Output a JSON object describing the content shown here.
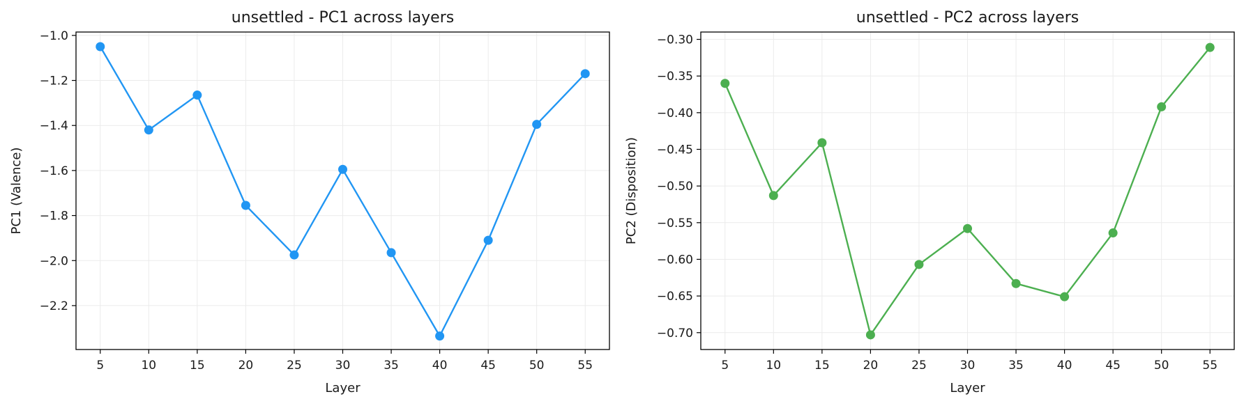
{
  "chart_data": [
    {
      "type": "line",
      "title": "unsettled - PC1 across layers",
      "xlabel": "Layer",
      "ylabel": "PC1 (Valence)",
      "x": [
        5,
        10,
        15,
        20,
        25,
        30,
        35,
        40,
        45,
        50,
        55
      ],
      "xticks": [
        5,
        10,
        15,
        20,
        25,
        30,
        35,
        40,
        45,
        50,
        55
      ],
      "xlim": [
        2.5,
        57.5
      ],
      "yticks": [
        -2.2,
        -2.0,
        -1.8,
        -1.6,
        -1.4,
        -1.2,
        -1.0
      ],
      "ytick_labels": [
        "−2.2",
        "−2.0",
        "−1.8",
        "−1.6",
        "−1.4",
        "−1.2",
        "−1.0"
      ],
      "ylim": [
        -2.395,
        -0.985
      ],
      "grid": true,
      "color": "#2196F3",
      "series": [
        {
          "values": [
            -1.05,
            -1.42,
            -1.265,
            -1.755,
            -1.975,
            -1.595,
            -1.965,
            -2.335,
            -1.91,
            -1.395,
            -1.17
          ]
        }
      ]
    },
    {
      "type": "line",
      "title": "unsettled - PC2 across layers",
      "xlabel": "Layer",
      "ylabel": "PC2 (Disposition)",
      "x": [
        5,
        10,
        15,
        20,
        25,
        30,
        35,
        40,
        45,
        50,
        55
      ],
      "xticks": [
        5,
        10,
        15,
        20,
        25,
        30,
        35,
        40,
        45,
        50,
        55
      ],
      "xlim": [
        2.5,
        57.5
      ],
      "yticks": [
        -0.7,
        -0.65,
        -0.6,
        -0.55,
        -0.5,
        -0.45,
        -0.4,
        -0.35,
        -0.3
      ],
      "ytick_labels": [
        "−0.70",
        "−0.65",
        "−0.60",
        "−0.55",
        "−0.50",
        "−0.45",
        "−0.40",
        "−0.35",
        "−0.30"
      ],
      "ylim": [
        -0.723,
        -0.29
      ],
      "grid": true,
      "color": "#4CAF50",
      "series": [
        {
          "values": [
            -0.36,
            -0.513,
            -0.441,
            -0.703,
            -0.607,
            -0.558,
            -0.633,
            -0.651,
            -0.564,
            -0.392,
            -0.311
          ]
        }
      ]
    }
  ]
}
